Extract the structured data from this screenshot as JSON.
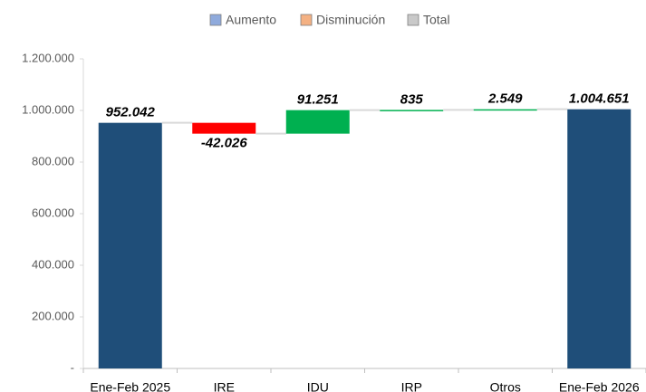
{
  "chart_data": {
    "type": "waterfall",
    "legend": [
      {
        "name": "Aumento",
        "color": "#8faadc"
      },
      {
        "name": "Disminución",
        "color": "#f4b183"
      },
      {
        "name": "Total",
        "color": "#c9c9c9"
      }
    ],
    "categories": [
      "Ene-Feb 2025",
      "IRE",
      "IDU",
      "IRP",
      "Otros",
      "Ene-Feb 2026"
    ],
    "kinds": [
      "total",
      "decrease",
      "increase",
      "increase",
      "increase",
      "total"
    ],
    "values": [
      952042,
      -42026,
      91251,
      835,
      2549,
      1004651
    ],
    "value_labels": [
      "952.042",
      "-42.026",
      "91.251",
      "835",
      "2.549",
      "1.004.651"
    ],
    "colors": {
      "total": "#1f4e79",
      "decrease": "#ff0000",
      "increase": "#00b050"
    },
    "ylim": [
      0,
      1200000
    ],
    "yticks": [
      {
        "value": 0,
        "label": "-"
      },
      {
        "value": 200000,
        "label": "200.000"
      },
      {
        "value": 400000,
        "label": "400.000"
      },
      {
        "value": 600000,
        "label": "600.000"
      },
      {
        "value": 800000,
        "label": "800.000"
      },
      {
        "value": 1000000,
        "label": "1.000.000"
      },
      {
        "value": 1200000,
        "label": "1.200.000"
      }
    ]
  }
}
